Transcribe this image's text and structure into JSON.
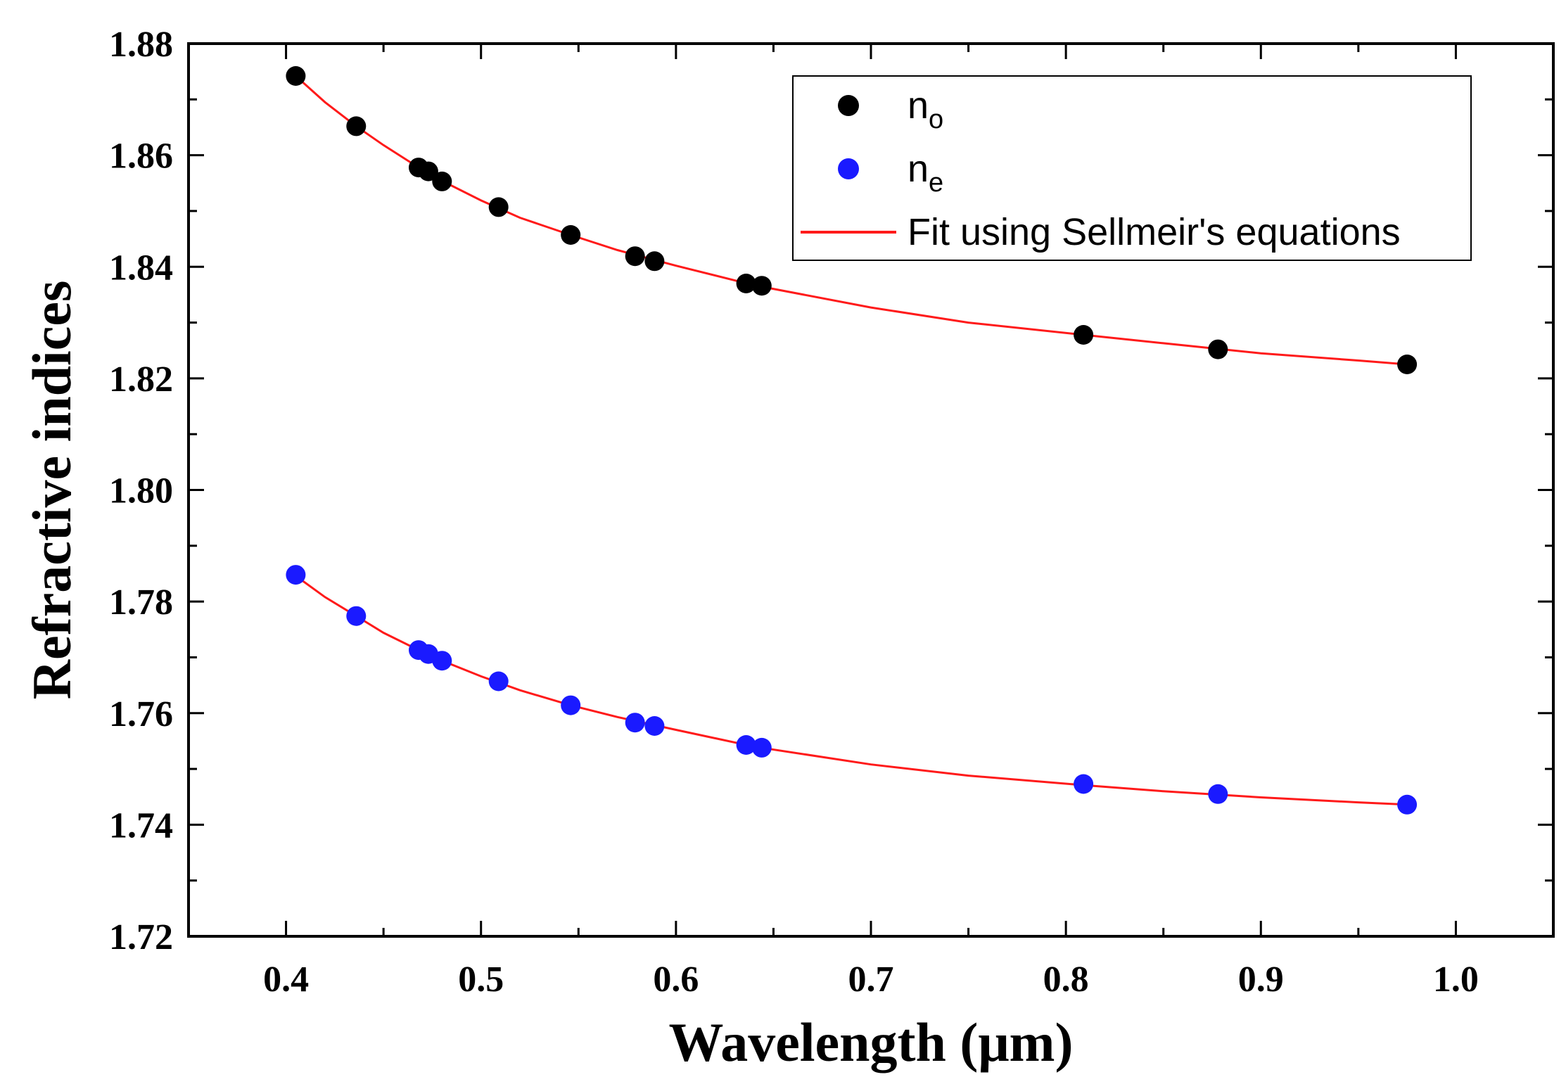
{
  "chart_data": {
    "type": "scatter",
    "xlabel": "Wavelength (μm)",
    "ylabel": "Refractive indices",
    "xlim": [
      0.35,
      1.05
    ],
    "ylim": [
      1.72,
      1.88
    ],
    "xticks": [
      0.4,
      0.5,
      0.6,
      0.7,
      0.8,
      0.9,
      1.0
    ],
    "xtick_labels": [
      "0.4",
      "0.5",
      "0.6",
      "0.7",
      "0.8",
      "0.9",
      "1.0"
    ],
    "yticks": [
      1.72,
      1.74,
      1.76,
      1.78,
      1.8,
      1.82,
      1.84,
      1.86,
      1.88
    ],
    "ytick_labels": [
      "1.72",
      "1.74",
      "1.76",
      "1.78",
      "1.80",
      "1.82",
      "1.84",
      "1.86",
      "1.88"
    ],
    "grid": false,
    "legend_position": "top-right",
    "series": [
      {
        "name": "n",
        "subscript": "o",
        "kind": "scatter",
        "color": "#000000",
        "x": [
          0.405,
          0.436,
          0.468,
          0.473,
          0.48,
          0.509,
          0.546,
          0.579,
          0.589,
          0.636,
          0.644,
          0.809,
          0.878,
          0.975
        ],
        "y": [
          1.8742,
          1.8652,
          1.8578,
          1.8571,
          1.8553,
          1.8507,
          1.8457,
          1.8419,
          1.841,
          1.837,
          1.8366,
          1.8278,
          1.8252,
          1.8225
        ]
      },
      {
        "name": "n",
        "subscript": "e",
        "kind": "scatter",
        "color": "#1a1aff",
        "x": [
          0.405,
          0.436,
          0.468,
          0.473,
          0.48,
          0.509,
          0.546,
          0.579,
          0.589,
          0.636,
          0.644,
          0.809,
          0.878,
          0.975
        ],
        "y": [
          1.7848,
          1.7774,
          1.7713,
          1.7706,
          1.7694,
          1.7657,
          1.7614,
          1.7583,
          1.7577,
          1.7543,
          1.7538,
          1.7473,
          1.7455,
          1.7436
        ]
      },
      {
        "name": "Fit using Sellmeir's equations",
        "kind": "line",
        "color": "#ff1a1a",
        "curves": [
          {
            "x": [
              0.405,
              0.42,
              0.436,
              0.45,
              0.468,
              0.48,
              0.5,
              0.52,
              0.546,
              0.57,
              0.6,
              0.64,
              0.7,
              0.75,
              0.809,
              0.85,
              0.9,
              0.95,
              0.975
            ],
            "y": [
              1.8742,
              1.8695,
              1.8652,
              1.8618,
              1.8578,
              1.8554,
              1.8519,
              1.8488,
              1.8457,
              1.843,
              1.8402,
              1.8367,
              1.8327,
              1.83,
              1.8278,
              1.8263,
              1.8245,
              1.8232,
              1.8225
            ]
          },
          {
            "x": [
              0.405,
              0.42,
              0.436,
              0.45,
              0.468,
              0.48,
              0.5,
              0.52,
              0.546,
              0.57,
              0.6,
              0.64,
              0.7,
              0.75,
              0.809,
              0.85,
              0.9,
              0.95,
              0.975
            ],
            "y": [
              1.7846,
              1.7808,
              1.7774,
              1.7744,
              1.7713,
              1.7694,
              1.7666,
              1.7641,
              1.7614,
              1.7593,
              1.757,
              1.754,
              1.7508,
              1.7488,
              1.7471,
              1.746,
              1.7449,
              1.744,
              1.7436
            ]
          }
        ]
      }
    ]
  }
}
